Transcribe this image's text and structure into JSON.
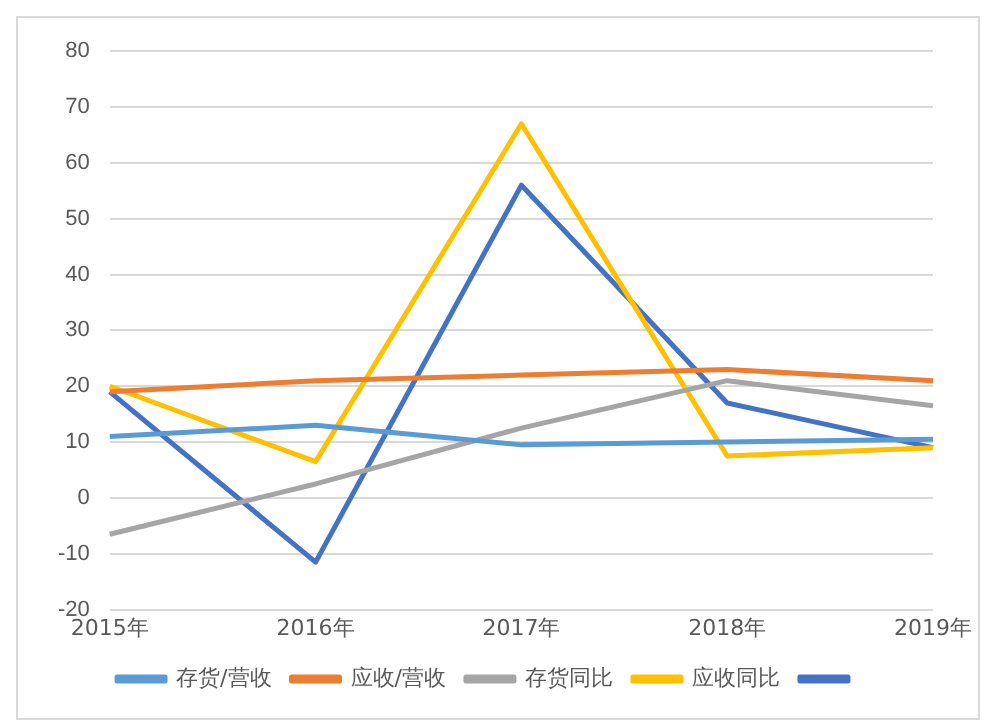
{
  "chart_data": {
    "type": "line",
    "categories": [
      "2015年",
      "2016年",
      "2017年",
      "2018年",
      "2019年"
    ],
    "series": [
      {
        "name": "存货/营收",
        "color": "#5b9bd5",
        "values": [
          11,
          13,
          9.5,
          10,
          10.5
        ]
      },
      {
        "name": "应收/营收",
        "color": "#ed7d31",
        "values": [
          19,
          21,
          22,
          23,
          21
        ]
      },
      {
        "name": "存货同比",
        "color": "#a5a5a5",
        "values": [
          -6.5,
          2.5,
          12.5,
          21,
          16.5
        ]
      },
      {
        "name": "应收同比",
        "color": "#ffc000",
        "values": [
          20,
          6.5,
          67,
          7.5,
          9
        ]
      },
      {
        "color": "#4472c4",
        "values": [
          19,
          -11.5,
          56,
          17,
          9
        ]
      }
    ],
    "ylim": [
      -20,
      80
    ],
    "yticks": [
      -20,
      -10,
      0,
      10,
      20,
      30,
      40,
      50,
      60,
      70,
      80
    ],
    "grid": "y",
    "legend": "bottom",
    "marker": "none",
    "line_style": "solid"
  }
}
